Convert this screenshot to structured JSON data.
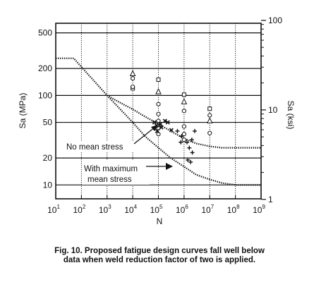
{
  "chart_data": {
    "type": "scatter",
    "xlabel": "N",
    "ylabel": "Sa (MPa)",
    "y2label": "Sa (ksi)",
    "xscale": "log",
    "yscale": "log",
    "xlim": [
      10,
      1000000000
    ],
    "ylim": [
      7,
      640
    ],
    "grid": true,
    "x_ticks": [
      {
        "base": "10",
        "exp": "1"
      },
      {
        "base": "10",
        "exp": "2"
      },
      {
        "base": "10",
        "exp": "3"
      },
      {
        "base": "10",
        "exp": "4"
      },
      {
        "base": "10",
        "exp": "5"
      },
      {
        "base": "10",
        "exp": "6"
      },
      {
        "base": "10",
        "exp": "7"
      },
      {
        "base": "10",
        "exp": "8"
      },
      {
        "base": "10",
        "exp": "9"
      }
    ],
    "y_ticks": [
      "500",
      "200",
      "100",
      "50",
      "20",
      "10"
    ],
    "y_tick_values": [
      500,
      200,
      100,
      50,
      20,
      10
    ],
    "y2_ticks": [
      "100",
      "10",
      "1"
    ],
    "y2_tick_values_ksi": [
      100,
      10,
      1
    ],
    "ksi_to_mpa": 6.895,
    "series": [
      {
        "kind": "line",
        "style": "dotted",
        "x": [
          10,
          50,
          1000,
          3000,
          10000,
          30000,
          100000,
          300000,
          1000000,
          3000000,
          10000000,
          30000000,
          100000000,
          1000000000
        ],
        "y": [
          260,
          260,
          100,
          84,
          70,
          58,
          48,
          40,
          33,
          29,
          27,
          26,
          26,
          26
        ]
      },
      {
        "kind": "line",
        "style": "dotted",
        "x": [
          1000,
          3000,
          10000,
          30000,
          100000,
          300000,
          1000000,
          3000000,
          10000000,
          30000000,
          100000000,
          1000000000
        ],
        "y": [
          100,
          72,
          50,
          35,
          26,
          20,
          16,
          13,
          11.5,
          10.5,
          10,
          10
        ]
      },
      {
        "kind": "points",
        "marker": "triangle",
        "x": [
          10000,
          100000,
          1000000,
          10000000
        ],
        "y": [
          175,
          110,
          85,
          52
        ]
      },
      {
        "kind": "points",
        "marker": "square",
        "x": [
          10000,
          100000,
          1000000,
          10000000
        ],
        "y": [
          120,
          150,
          102,
          71
        ]
      },
      {
        "kind": "points",
        "marker": "circle",
        "x": [
          10000,
          10000,
          100000,
          100000,
          100000,
          100000,
          100000,
          1000000,
          1000000,
          1000000,
          1000000,
          10000000,
          10000000
        ],
        "y": [
          125,
          155,
          80,
          62,
          52,
          43,
          37,
          67,
          45,
          37,
          32,
          60,
          38
        ]
      },
      {
        "kind": "points",
        "marker": "x",
        "x": [
          70000,
          85000,
          120000,
          180000,
          230000,
          320000,
          90000,
          130000
        ],
        "y": [
          50,
          46,
          48,
          52,
          50,
          41,
          40,
          44
        ]
      },
      {
        "kind": "points",
        "marker": "plus",
        "x": [
          550000,
          800000,
          1300000,
          2000000,
          2600000,
          750000,
          1600000,
          2100000,
          1400000,
          1800000
        ],
        "y": [
          40,
          35,
          30,
          32,
          40,
          30,
          26,
          23,
          19,
          18
        ]
      }
    ],
    "annotations": [
      {
        "text": "No mean stress"
      },
      {
        "lines": [
          "With maximum",
          "mean stress"
        ]
      }
    ]
  },
  "caption": {
    "line1": "Fig. 10.  Proposed fatigue design curves fall well below",
    "line2": "data when weld reduction factor of two is applied."
  }
}
